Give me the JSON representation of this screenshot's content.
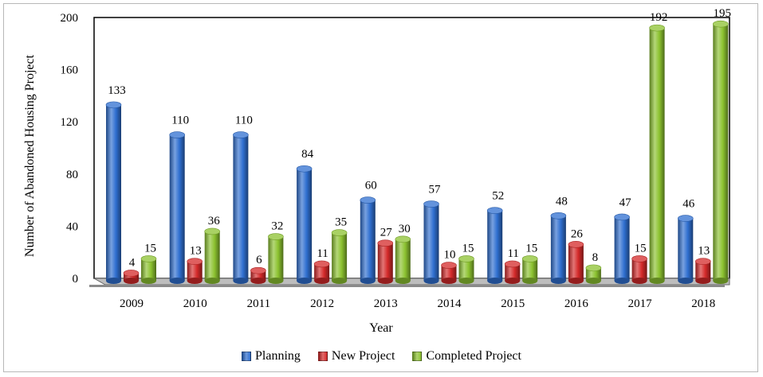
{
  "chart_data": {
    "type": "bar",
    "title": "",
    "xlabel": "Year",
    "ylabel": "Number of Abandoned Housing Project",
    "categories": [
      "2009",
      "2010",
      "2011",
      "2012",
      "2013",
      "2014",
      "2015",
      "2016",
      "2017",
      "2018"
    ],
    "ylim": [
      0,
      200
    ],
    "yticks": [
      "0",
      "40",
      "80",
      "120",
      "160",
      "200"
    ],
    "grid": false,
    "legend_position": "bottom",
    "series": [
      {
        "name": "Planning",
        "color": "#2f6fd0",
        "values": [
          133,
          110,
          110,
          84,
          60,
          57,
          52,
          48,
          47,
          46
        ]
      },
      {
        "name": "New Project",
        "color": "#d42a2a",
        "values": [
          4,
          13,
          6,
          11,
          27,
          10,
          11,
          26,
          15,
          13
        ]
      },
      {
        "name": "Completed Project",
        "color": "#8cc230",
        "values": [
          15,
          36,
          32,
          35,
          30,
          15,
          15,
          8,
          192,
          195
        ]
      }
    ]
  }
}
